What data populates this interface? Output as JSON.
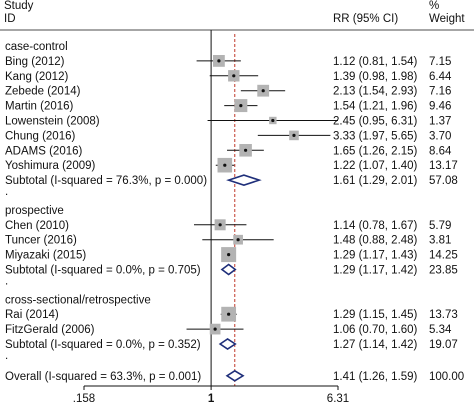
{
  "chart_data": {
    "type": "forest",
    "header": {
      "study_line1": "Study",
      "study_line2": "ID",
      "effect_label": "RR (95% CI)",
      "weight_line1": "%",
      "weight_line2": "Weight"
    },
    "x_axis": {
      "scale": "log",
      "ticks": [
        {
          "value": 0.158,
          "label": ".158"
        },
        {
          "value": 1,
          "label": "1"
        },
        {
          "value": 6.31,
          "label": "6.31"
        }
      ],
      "range": [
        0.158,
        6.31
      ]
    },
    "null_line": 1,
    "pooled_line": 1.41,
    "groups": [
      {
        "name": "case-control",
        "studies": [
          {
            "label": "Bing (2012)",
            "rr": 1.12,
            "lo": 0.81,
            "hi": 1.54,
            "ci_text": "1.12 (0.81, 1.54)",
            "weight": "7.15"
          },
          {
            "label": "Kang (2012)",
            "rr": 1.39,
            "lo": 0.98,
            "hi": 1.98,
            "ci_text": "1.39 (0.98, 1.98)",
            "weight": "6.44"
          },
          {
            "label": "Zebede (2014)",
            "rr": 2.13,
            "lo": 1.54,
            "hi": 2.93,
            "ci_text": "2.13 (1.54, 2.93)",
            "weight": "7.16"
          },
          {
            "label": "Martin (2016)",
            "rr": 1.54,
            "lo": 1.21,
            "hi": 1.96,
            "ci_text": "1.54 (1.21, 1.96)",
            "weight": "9.46"
          },
          {
            "label": "Lowenstein (2008)",
            "rr": 2.45,
            "lo": 0.95,
            "hi": 6.31,
            "ci_text": "2.45 (0.95, 6.31)",
            "weight": "1.37"
          },
          {
            "label": "Chung (2016)",
            "rr": 3.33,
            "lo": 1.97,
            "hi": 5.65,
            "ci_text": "3.33 (1.97, 5.65)",
            "weight": "3.70"
          },
          {
            "label": "ADAMS (2016)",
            "rr": 1.65,
            "lo": 1.26,
            "hi": 2.15,
            "ci_text": "1.65 (1.26, 2.15)",
            "weight": "8.64"
          },
          {
            "label": "Yoshimura (2009)",
            "rr": 1.22,
            "lo": 1.07,
            "hi": 1.4,
            "ci_text": "1.22 (1.07, 1.40)",
            "weight": "13.17"
          }
        ],
        "subtotal": {
          "label": "Subtotal  (I-squared = 76.3%, p = 0.000)",
          "rr": 1.61,
          "lo": 1.29,
          "hi": 2.01,
          "ci_text": "1.61 (1.29, 2.01)",
          "weight": "57.08"
        }
      },
      {
        "name": "prospective",
        "studies": [
          {
            "label": "Chen (2010)",
            "rr": 1.14,
            "lo": 0.78,
            "hi": 1.67,
            "ci_text": "1.14 (0.78, 1.67)",
            "weight": "5.79"
          },
          {
            "label": "Tuncer (2016)",
            "rr": 1.48,
            "lo": 0.88,
            "hi": 2.48,
            "ci_text": "1.48 (0.88, 2.48)",
            "weight": "3.81"
          },
          {
            "label": "Miyazaki (2015)",
            "rr": 1.29,
            "lo": 1.17,
            "hi": 1.43,
            "ci_text": "1.29 (1.17, 1.43)",
            "weight": "14.25"
          }
        ],
        "subtotal": {
          "label": "Subtotal  (I-squared = 0.0%, p = 0.705)",
          "rr": 1.29,
          "lo": 1.17,
          "hi": 1.42,
          "ci_text": "1.29 (1.17, 1.42)",
          "weight": "23.85"
        }
      },
      {
        "name": "cross-sectional/retrospective",
        "studies": [
          {
            "label": "Rai (2014)",
            "rr": 1.29,
            "lo": 1.15,
            "hi": 1.45,
            "ci_text": "1.29 (1.15, 1.45)",
            "weight": "13.73"
          },
          {
            "label": "FitzGerald (2006)",
            "rr": 1.06,
            "lo": 0.7,
            "hi": 1.6,
            "ci_text": "1.06 (0.70, 1.60)",
            "weight": "5.34"
          }
        ],
        "subtotal": {
          "label": "Subtotal  (I-squared = 0.0%, p = 0.352)",
          "rr": 1.27,
          "lo": 1.14,
          "hi": 1.42,
          "ci_text": "1.27 (1.14, 1.42)",
          "weight": "19.07"
        }
      }
    ],
    "overall": {
      "label": "Overall  (I-squared = 63.3%, p = 0.001)",
      "rr": 1.41,
      "lo": 1.26,
      "hi": 1.59,
      "ci_text": "1.41 (1.26, 1.59)",
      "weight": "100.00"
    },
    "colors": {
      "text": "#111111",
      "box": "#b3b3b3",
      "diamond": "#1f2f7a",
      "pooled_line": "#c0392b",
      "axis": "#111111"
    }
  }
}
